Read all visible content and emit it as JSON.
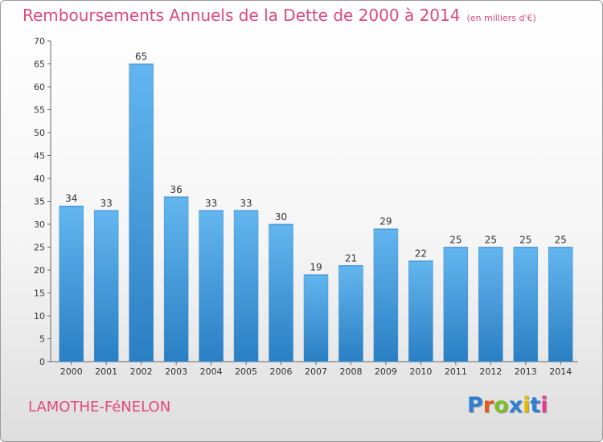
{
  "title": "Remboursements Annuels de la Dette de 2000 à 2014",
  "unit_note": "(en milliers d'€)",
  "place_name": "LAMOTHE-FéNELON",
  "logo": {
    "text": "Proxiti",
    "letter_colors": [
      "#2f7fd0",
      "#e85a1a",
      "#7cbf2a",
      "#2f7fd0",
      "#e8b800",
      "#2f7fd0",
      "#e23c8c"
    ]
  },
  "colors": {
    "title": "#e0487c",
    "bar_top": "#63b6ee",
    "bar_bottom": "#2a7fc4"
  },
  "chart_data": {
    "type": "bar",
    "title": "Remboursements Annuels de la Dette de 2000 à 2014",
    "categories": [
      "2000",
      "2001",
      "2002",
      "2003",
      "2004",
      "2005",
      "2006",
      "2007",
      "2008",
      "2009",
      "2010",
      "2011",
      "2012",
      "2013",
      "2014"
    ],
    "values": [
      34,
      33,
      65,
      36,
      33,
      33,
      30,
      19,
      21,
      29,
      22,
      25,
      25,
      25,
      25
    ],
    "ylim": [
      0,
      70
    ],
    "yticks": [
      0,
      5,
      10,
      15,
      20,
      25,
      30,
      35,
      40,
      45,
      50,
      55,
      60,
      65,
      70
    ],
    "grid": false,
    "data_labels": true
  }
}
